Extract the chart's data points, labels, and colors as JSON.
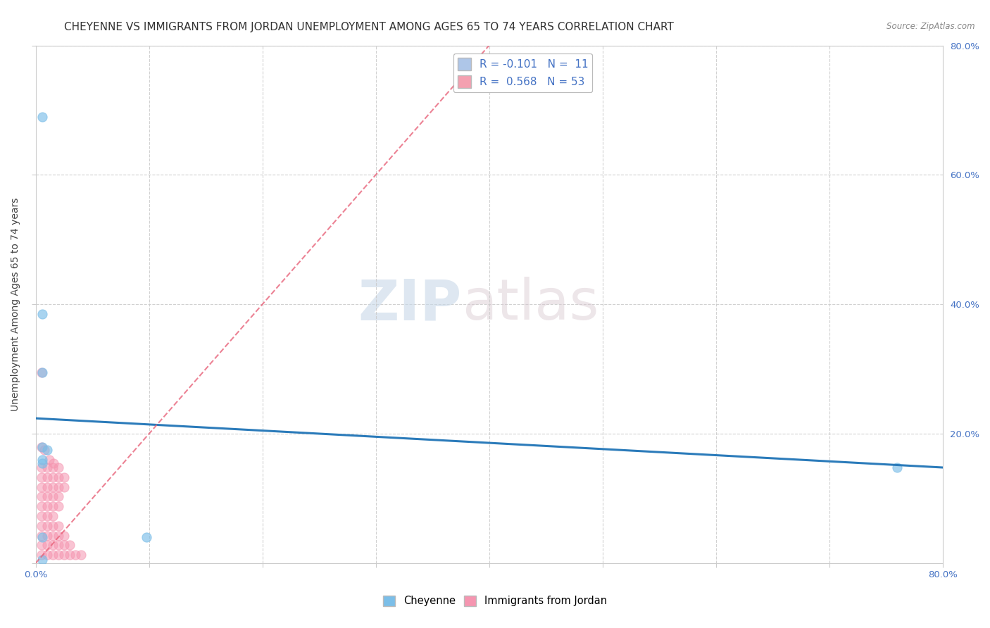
{
  "title": "CHEYENNE VS IMMIGRANTS FROM JORDAN UNEMPLOYMENT AMONG AGES 65 TO 74 YEARS CORRELATION CHART",
  "source": "Source: ZipAtlas.com",
  "ylabel": "Unemployment Among Ages 65 to 74 years",
  "xlim": [
    0,
    0.8
  ],
  "ylim": [
    0,
    0.8
  ],
  "xticks": [
    0.0,
    0.1,
    0.2,
    0.3,
    0.4,
    0.5,
    0.6,
    0.7,
    0.8
  ],
  "yticks": [
    0.0,
    0.2,
    0.4,
    0.6,
    0.8
  ],
  "legend_entries": [
    {
      "label": "R = -0.101   N =  11",
      "color": "#aec6e8"
    },
    {
      "label": "R =  0.568   N = 53",
      "color": "#f4a0b0"
    }
  ],
  "cheyenne_points": [
    [
      0.006,
      0.69
    ],
    [
      0.006,
      0.385
    ],
    [
      0.006,
      0.295
    ],
    [
      0.006,
      0.18
    ],
    [
      0.01,
      0.175
    ],
    [
      0.006,
      0.16
    ],
    [
      0.006,
      0.155
    ],
    [
      0.006,
      0.04
    ],
    [
      0.006,
      0.005
    ],
    [
      0.098,
      0.04
    ],
    [
      0.76,
      0.148
    ]
  ],
  "jordan_points": [
    [
      0.005,
      0.295
    ],
    [
      0.005,
      0.18
    ],
    [
      0.008,
      0.175
    ],
    [
      0.012,
      0.16
    ],
    [
      0.016,
      0.155
    ],
    [
      0.005,
      0.148
    ],
    [
      0.01,
      0.148
    ],
    [
      0.015,
      0.148
    ],
    [
      0.02,
      0.148
    ],
    [
      0.005,
      0.133
    ],
    [
      0.01,
      0.133
    ],
    [
      0.015,
      0.133
    ],
    [
      0.02,
      0.133
    ],
    [
      0.025,
      0.133
    ],
    [
      0.005,
      0.118
    ],
    [
      0.01,
      0.118
    ],
    [
      0.015,
      0.118
    ],
    [
      0.02,
      0.118
    ],
    [
      0.025,
      0.118
    ],
    [
      0.005,
      0.103
    ],
    [
      0.01,
      0.103
    ],
    [
      0.015,
      0.103
    ],
    [
      0.02,
      0.103
    ],
    [
      0.005,
      0.088
    ],
    [
      0.01,
      0.088
    ],
    [
      0.015,
      0.088
    ],
    [
      0.02,
      0.088
    ],
    [
      0.005,
      0.073
    ],
    [
      0.01,
      0.073
    ],
    [
      0.015,
      0.073
    ],
    [
      0.005,
      0.058
    ],
    [
      0.01,
      0.058
    ],
    [
      0.015,
      0.058
    ],
    [
      0.02,
      0.058
    ],
    [
      0.005,
      0.043
    ],
    [
      0.01,
      0.043
    ],
    [
      0.015,
      0.043
    ],
    [
      0.02,
      0.043
    ],
    [
      0.025,
      0.043
    ],
    [
      0.005,
      0.028
    ],
    [
      0.01,
      0.028
    ],
    [
      0.015,
      0.028
    ],
    [
      0.02,
      0.028
    ],
    [
      0.025,
      0.028
    ],
    [
      0.03,
      0.028
    ],
    [
      0.005,
      0.013
    ],
    [
      0.01,
      0.013
    ],
    [
      0.015,
      0.013
    ],
    [
      0.02,
      0.013
    ],
    [
      0.025,
      0.013
    ],
    [
      0.03,
      0.013
    ],
    [
      0.035,
      0.013
    ],
    [
      0.04,
      0.013
    ]
  ],
  "cheyenne_line_x": [
    0.0,
    0.8
  ],
  "cheyenne_line_y": [
    0.224,
    0.148
  ],
  "jordan_line_x": [
    0.0,
    0.4
  ],
  "jordan_line_y": [
    0.0,
    0.8
  ],
  "cheyenne_color": "#7bbee8",
  "jordan_color": "#f595b0",
  "cheyenne_line_color": "#2b7bba",
  "jordan_line_color": "#e8637a",
  "background_color": "#ffffff",
  "grid_color": "#cccccc",
  "watermark_zip": "ZIP",
  "watermark_atlas": "atlas",
  "marker_size": 90,
  "title_fontsize": 11,
  "axis_label_fontsize": 10,
  "tick_fontsize": 9.5,
  "legend_fontsize": 11
}
